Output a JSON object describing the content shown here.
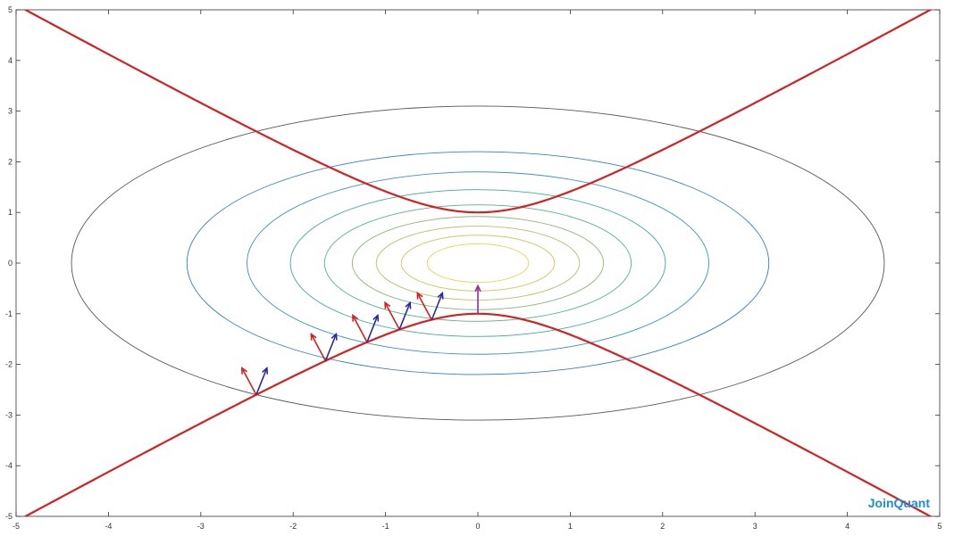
{
  "chart_data": {
    "type": "contour",
    "xlim": [
      -5,
      5
    ],
    "ylim": [
      -5,
      5
    ],
    "x_ticks": [
      "-5",
      "-4",
      "-3",
      "-2",
      "-1",
      "0",
      "1",
      "2",
      "3",
      "4",
      "5"
    ],
    "y_ticks": [
      "5",
      "4",
      "3",
      "2",
      "1",
      "0",
      "-1",
      "-2",
      "-3",
      "-4",
      "-5"
    ],
    "grid": false,
    "contours": [
      {
        "a": 4.4,
        "b": 3.1,
        "color": "#555555"
      },
      {
        "a": 3.15,
        "b": 2.2,
        "color": "#3a7fc0"
      },
      {
        "a": 2.5,
        "b": 1.8,
        "color": "#3a95b8"
      },
      {
        "a": 2.03,
        "b": 1.45,
        "color": "#3fa8a0"
      },
      {
        "a": 1.66,
        "b": 1.15,
        "color": "#56b38a"
      },
      {
        "a": 1.36,
        "b": 0.92,
        "color": "#8ab87a"
      },
      {
        "a": 1.1,
        "b": 0.73,
        "color": "#b5c06a"
      },
      {
        "a": 0.83,
        "b": 0.55,
        "color": "#d2c85e"
      },
      {
        "a": 0.55,
        "b": 0.38,
        "color": "#e6d450"
      }
    ],
    "hyperbola": {
      "equation": "y^2 - x^2 = 1",
      "color": "#d42020"
    },
    "arrow_points": [
      {
        "x": -2.4,
        "y": -2.6
      },
      {
        "x": -1.65,
        "y": -1.93
      },
      {
        "x": -1.2,
        "y": -1.56
      },
      {
        "x": -0.85,
        "y": -1.31
      },
      {
        "x": -0.5,
        "y": -1.12
      }
    ],
    "arrow_colors": {
      "red": "#d42020",
      "blue": "#2a2aa0",
      "purple": "#9a2aa0"
    },
    "purple_arrow": {
      "x": 0,
      "y": -1,
      "to_y": -0.45
    }
  },
  "watermark": {
    "text": "JoinQuant",
    "color": "#1a8fd8"
  }
}
